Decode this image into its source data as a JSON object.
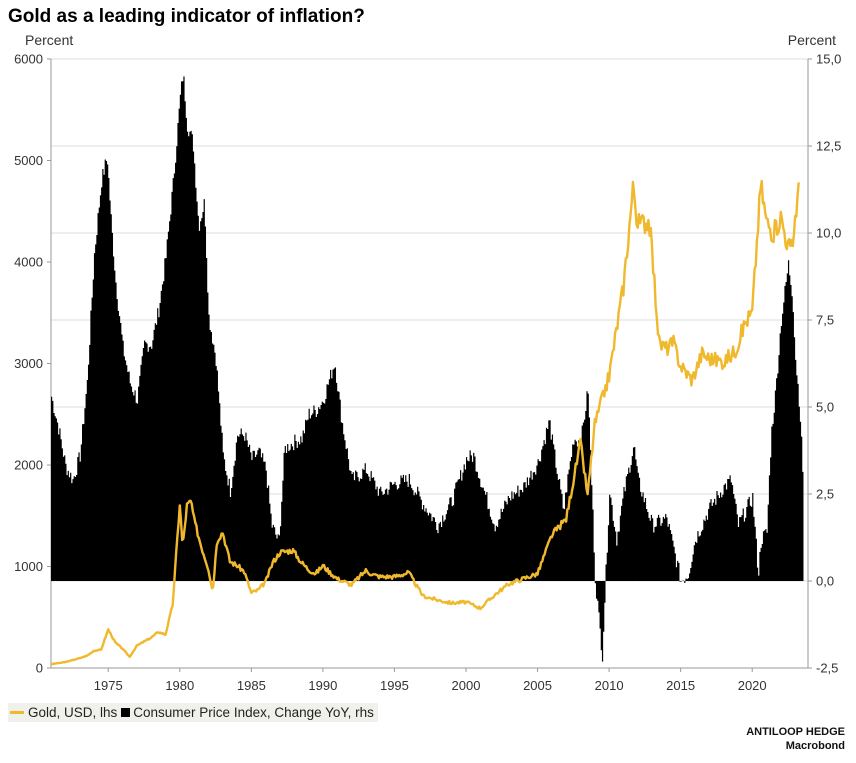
{
  "title": "Gold as a leading indicator of inflation?",
  "left_unit": "Percent",
  "right_unit": "Percent",
  "legend": {
    "gold_label": "Gold, USD, lhs",
    "cpi_label": "Consumer Price Index, Change YoY, rhs"
  },
  "credits": {
    "line1": "ANTILOOP HEDGE",
    "line2": "Macrobond"
  },
  "colors": {
    "gold": "#f0b92d",
    "cpi": "#000000",
    "grid": "#dedede"
  },
  "chart_data": {
    "type": "line",
    "x_range": [
      1971.0,
      2023.9
    ],
    "x_ticks": [
      1975,
      1980,
      1985,
      1990,
      1995,
      2000,
      2005,
      2010,
      2015,
      2020
    ],
    "left_axis": {
      "ticks": [
        0,
        1000,
        2000,
        3000,
        4000,
        5000,
        6000
      ],
      "range": [
        0,
        6000
      ]
    },
    "right_axis": {
      "ticks": [
        "-2,5",
        "0,0",
        "2,5",
        "5,0",
        "7,5",
        "10,0",
        "12,5",
        "15,0"
      ],
      "range": [
        -2.5,
        15
      ]
    },
    "series": [
      {
        "name": "Gold, USD, lhs",
        "type": "line",
        "axis": "left",
        "points": [
          [
            1971.0,
            38
          ],
          [
            1972.0,
            58
          ],
          [
            1973.0,
            97
          ],
          [
            1973.5,
            120
          ],
          [
            1974.0,
            170
          ],
          [
            1974.5,
            180
          ],
          [
            1975.0,
            380
          ],
          [
            1975.5,
            250
          ],
          [
            1976.0,
            190
          ],
          [
            1976.5,
            110
          ],
          [
            1977.0,
            220
          ],
          [
            1977.5,
            260
          ],
          [
            1978.0,
            300
          ],
          [
            1978.5,
            355
          ],
          [
            1979.0,
            330
          ],
          [
            1979.5,
            620
          ],
          [
            1980.0,
            1620
          ],
          [
            1980.2,
            1190
          ],
          [
            1980.5,
            1600
          ],
          [
            1980.8,
            1640
          ],
          [
            1981.0,
            1460
          ],
          [
            1981.5,
            1200
          ],
          [
            1982.0,
            980
          ],
          [
            1982.3,
            750
          ],
          [
            1982.6,
            1260
          ],
          [
            1983.0,
            1340
          ],
          [
            1983.5,
            1050
          ],
          [
            1984.0,
            1010
          ],
          [
            1984.5,
            950
          ],
          [
            1985.0,
            740
          ],
          [
            1985.5,
            770
          ],
          [
            1986.0,
            850
          ],
          [
            1986.5,
            1040
          ],
          [
            1987.0,
            1140
          ],
          [
            1987.9,
            1160
          ],
          [
            1988.5,
            1040
          ],
          [
            1989.0,
            970
          ],
          [
            1989.5,
            930
          ],
          [
            1990.0,
            1010
          ],
          [
            1990.5,
            940
          ],
          [
            1991.0,
            880
          ],
          [
            1992.0,
            820
          ],
          [
            1993.0,
            960
          ],
          [
            1993.5,
            920
          ],
          [
            1994.0,
            900
          ],
          [
            1995.0,
            900
          ],
          [
            1996.0,
            940
          ],
          [
            1996.5,
            820
          ],
          [
            1997.0,
            710
          ],
          [
            1998.0,
            670
          ],
          [
            1999.0,
            640
          ],
          [
            2000.0,
            650
          ],
          [
            2001.0,
            590
          ],
          [
            2002.0,
            720
          ],
          [
            2003.0,
            830
          ],
          [
            2004.0,
            880
          ],
          [
            2005.0,
            930
          ],
          [
            2006.0,
            1310
          ],
          [
            2007.0,
            1470
          ],
          [
            2008.0,
            2220
          ],
          [
            2008.5,
            1700
          ],
          [
            2009.0,
            2400
          ],
          [
            2010.0,
            2880
          ],
          [
            2011.0,
            3760
          ],
          [
            2011.7,
            4760
          ],
          [
            2012.0,
            4370
          ],
          [
            2012.8,
            4410
          ],
          [
            2013.0,
            4100
          ],
          [
            2013.5,
            3200
          ],
          [
            2014.0,
            3150
          ],
          [
            2014.5,
            3200
          ],
          [
            2015.0,
            2980
          ],
          [
            2015.8,
            2840
          ],
          [
            2016.5,
            3100
          ],
          [
            2017.0,
            3050
          ],
          [
            2018.0,
            3020
          ],
          [
            2018.8,
            3120
          ],
          [
            2019.5,
            3400
          ],
          [
            2020.0,
            3500
          ],
          [
            2020.6,
            4770
          ],
          [
            2021.0,
            4400
          ],
          [
            2021.5,
            4280
          ],
          [
            2022.0,
            4450
          ],
          [
            2022.5,
            4160
          ],
          [
            2022.8,
            4120
          ],
          [
            2023.0,
            4450
          ],
          [
            2023.3,
            4750
          ]
        ]
      },
      {
        "name": "Consumer Price Index, Change YoY, rhs",
        "type": "area",
        "axis": "right",
        "points": [
          [
            1971.0,
            5.3
          ],
          [
            1971.5,
            4.4
          ],
          [
            1972.0,
            3.3
          ],
          [
            1972.5,
            2.9
          ],
          [
            1973.0,
            3.6
          ],
          [
            1973.5,
            5.7
          ],
          [
            1974.0,
            9.4
          ],
          [
            1974.5,
            11.5
          ],
          [
            1974.9,
            12.2
          ],
          [
            1975.2,
            10.2
          ],
          [
            1975.5,
            8.6
          ],
          [
            1976.0,
            6.7
          ],
          [
            1976.5,
            5.7
          ],
          [
            1977.0,
            5.2
          ],
          [
            1977.5,
            6.8
          ],
          [
            1978.0,
            6.8
          ],
          [
            1978.5,
            7.8
          ],
          [
            1979.0,
            9.3
          ],
          [
            1979.5,
            11.4
          ],
          [
            1980.0,
            13.9
          ],
          [
            1980.2,
            14.6
          ],
          [
            1980.5,
            13.1
          ],
          [
            1980.9,
            12.6
          ],
          [
            1981.3,
            10.2
          ],
          [
            1981.7,
            10.9
          ],
          [
            1982.0,
            7.6
          ],
          [
            1982.5,
            6.4
          ],
          [
            1983.0,
            3.6
          ],
          [
            1983.5,
            2.6
          ],
          [
            1984.0,
            4.2
          ],
          [
            1984.5,
            4.2
          ],
          [
            1985.0,
            3.5
          ],
          [
            1985.5,
            3.7
          ],
          [
            1986.0,
            3.2
          ],
          [
            1986.4,
            1.6
          ],
          [
            1986.9,
            1.1
          ],
          [
            1987.3,
            3.8
          ],
          [
            1988.0,
            4.0
          ],
          [
            1988.5,
            4.1
          ],
          [
            1989.0,
            4.8
          ],
          [
            1989.5,
            4.9
          ],
          [
            1990.0,
            5.2
          ],
          [
            1990.8,
            6.3
          ],
          [
            1991.3,
            4.6
          ],
          [
            1992.0,
            2.9
          ],
          [
            1993.0,
            3.2
          ],
          [
            1994.0,
            2.5
          ],
          [
            1995.0,
            2.8
          ],
          [
            1996.0,
            2.9
          ],
          [
            1997.0,
            2.2
          ],
          [
            1998.0,
            1.6
          ],
          [
            1999.0,
            2.3
          ],
          [
            2000.0,
            3.5
          ],
          [
            2000.5,
            3.6
          ],
          [
            2001.0,
            2.9
          ],
          [
            2002.0,
            1.6
          ],
          [
            2003.0,
            2.4
          ],
          [
            2004.0,
            2.7
          ],
          [
            2005.0,
            3.4
          ],
          [
            2005.8,
            4.6
          ],
          [
            2006.0,
            4.0
          ],
          [
            2006.8,
            2.0
          ],
          [
            2007.0,
            2.7
          ],
          [
            2007.5,
            4.1
          ],
          [
            2008.0,
            4.0
          ],
          [
            2008.5,
            5.5
          ],
          [
            2009.0,
            0.1
          ],
          [
            2009.3,
            -1.3
          ],
          [
            2009.5,
            -2.1
          ],
          [
            2010.0,
            2.6
          ],
          [
            2010.5,
            1.2
          ],
          [
            2011.0,
            2.5
          ],
          [
            2011.7,
            3.9
          ],
          [
            2012.0,
            2.9
          ],
          [
            2013.0,
            1.6
          ],
          [
            2014.0,
            1.8
          ],
          [
            2015.0,
            0.0
          ],
          [
            2015.5,
            0.2
          ],
          [
            2016.0,
            1.2
          ],
          [
            2017.0,
            2.1
          ],
          [
            2018.0,
            2.7
          ],
          [
            2018.5,
            2.9
          ],
          [
            2019.0,
            1.6
          ],
          [
            2019.5,
            2.0
          ],
          [
            2020.0,
            2.4
          ],
          [
            2020.4,
            0.2
          ],
          [
            2020.6,
            1.2
          ],
          [
            2021.0,
            1.4
          ],
          [
            2021.3,
            4.2
          ],
          [
            2021.6,
            5.4
          ],
          [
            2022.0,
            7.5
          ],
          [
            2022.5,
            9.1
          ],
          [
            2022.8,
            8.2
          ],
          [
            2023.0,
            6.4
          ],
          [
            2023.3,
            5.0
          ],
          [
            2023.5,
            3.2
          ]
        ]
      }
    ]
  }
}
